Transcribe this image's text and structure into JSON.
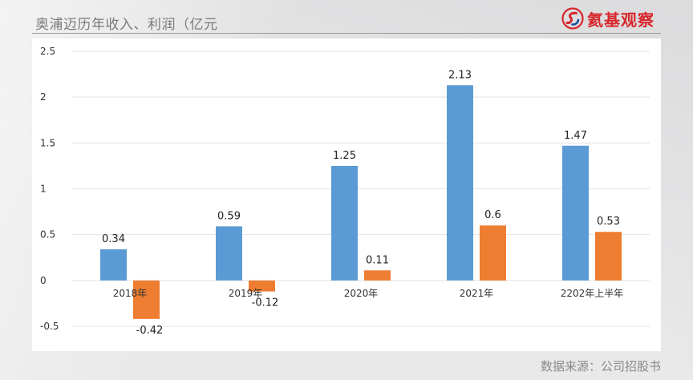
{
  "header": {
    "title": "奥浦迈历年收入、利润（亿元",
    "logo_text": "氦基观察",
    "logo_color": "#d8262c"
  },
  "footer": {
    "source": "数据来源：公司招股书"
  },
  "chart_data": {
    "type": "bar",
    "categories": [
      "2018年",
      "2019年",
      "2020年",
      "2021年",
      "2202年上半年"
    ],
    "series": [
      {
        "color": "#5b9bd5",
        "values": [
          0.34,
          0.59,
          1.25,
          2.13,
          1.47
        ],
        "labels": [
          "0.34",
          "0.59",
          "1.25",
          "2.13",
          "1.47"
        ]
      },
      {
        "color": "#ed7d31",
        "values": [
          -0.42,
          -0.12,
          0.11,
          0.6,
          0.53
        ],
        "labels": [
          "-0.42",
          "-0.12",
          "0.11",
          "0.6",
          "0.53"
        ]
      }
    ],
    "ylim": [
      -0.5,
      2.5
    ],
    "yticks": [
      2.5,
      2,
      1.5,
      1,
      0.5,
      0,
      -0.5
    ],
    "ytick_labels": [
      "2.5",
      "2",
      "1.5",
      "1",
      "0.5",
      "0",
      "-0.5"
    ],
    "grid": true,
    "legend": "none"
  }
}
